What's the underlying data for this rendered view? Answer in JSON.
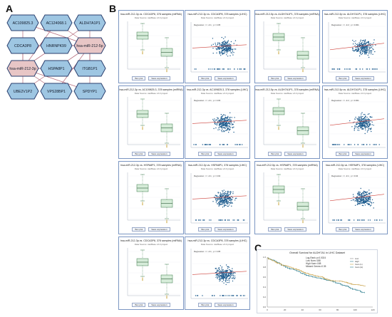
{
  "figure": {
    "labels": {
      "a": "A",
      "b": "B",
      "c": "C"
    }
  },
  "network": {
    "nodes": [
      {
        "id": "n1",
        "label": "AC109825.3",
        "mirna": false
      },
      {
        "id": "n2",
        "label": "AC124068.1",
        "mirna": false
      },
      {
        "id": "n3",
        "label": "ALDH7A1P1",
        "mirna": false
      },
      {
        "id": "n4",
        "label": "CDCA3P8",
        "mirna": false
      },
      {
        "id": "n5",
        "label": "HNRNPK99",
        "mirna": false
      },
      {
        "id": "n6",
        "label": "hsa-miR-212-5p",
        "mirna": true
      },
      {
        "id": "n7",
        "label": "hsa-miR-212-3p",
        "mirna": true
      },
      {
        "id": "n8",
        "label": "HSPA8P1",
        "mirna": false
      },
      {
        "id": "n9",
        "label": "ITGB1P1",
        "mirna": false
      },
      {
        "id": "n10",
        "label": "UBE2V1P2",
        "mirna": false
      },
      {
        "id": "n11",
        "label": "VPS28BP1",
        "mirna": false
      },
      {
        "id": "n12",
        "label": "SPDYP1",
        "mirna": false
      }
    ],
    "colors": {
      "node_fill": "#9ec6e2",
      "node_stroke": "#2a3f6e",
      "mirna_fill": "#e8c6c6",
      "edge": "#b46a7a"
    }
  },
  "panel_b": {
    "boxplot_panels": [
      {
        "title": "hsa-miR-212-3p vs. CDCA3P8, 378 samples (miRNA)",
        "subtitle": "Data Source: starBase v3.0 project"
      },
      {
        "title": "hsa-miR-212-5p vs. ALDH7A1P1, 378 samples (miRNA)",
        "subtitle": "Data Source: starBase v3.0 project"
      },
      {
        "title": "hsa-miR-212-3p vs. AC109825.3, 378 samples (miRNA)",
        "subtitle": "Data Source: starBase v3.0 project"
      },
      {
        "title": "hsa-miR-212-5p vs. ALDH7A1P1, 378 samples (miRNA)",
        "subtitle": "Data Source: starBase v3.0 project"
      },
      {
        "title": "hsa-miR-212-3p vs. HSPA8P1, 378 samples (miRNA)",
        "subtitle": "Data Source: starBase v3.0 project"
      },
      {
        "title": "hsa-miR-212-5p vs. HSPA8P1, 378 samples (miRNA)",
        "subtitle": "Data Source: starBase v3.0 project"
      },
      {
        "title": "hsa-miR-212-3p vs. CDCA3P8, 378 samples (miRNA)",
        "subtitle": "Data Source: starBase v3.0 project"
      }
    ],
    "scatter_panels": [
      {
        "title": "hsa-miR-212-3p vs. CDCA3P8, 378 samples (LIHC)",
        "subtitle": "Data Source: starBase v3.0 project",
        "legend": "Regression: r = -0.1 ; p = 0.05"
      },
      {
        "title": "hsa-miR-212-5p vs. ALDH7A1P1, 378 samples (LIHC)",
        "subtitle": "Data Source: starBase v3.0 project",
        "legend": "Regression: r = -0.2 ; p = 0.001"
      },
      {
        "title": "hsa-miR-212-3p vs. AC109825.3, 378 samples (LIHC)",
        "subtitle": "Data Source: starBase v3.0 project",
        "legend": "Regression: r = -0.1 ; p = 0.03"
      },
      {
        "title": "hsa-miR-212-5p vs. ALDH7A1P1, 378 samples (LIHC)",
        "subtitle": "Data Source: starBase v3.0 project",
        "legend": "Regression: r = -0.2 ; p = 0.001"
      },
      {
        "title": "hsa-miR-212-3p vs. HSPA8P1, 378 samples (LIHC)",
        "subtitle": "Data Source: starBase v3.0 project",
        "legend": "Regression: r = -0.1 ; p = 0.02"
      },
      {
        "title": "hsa-miR-212-5p vs. HSPA8P1, 378 samples (LIHC)",
        "subtitle": "Data Source: starBase v3.0 project",
        "legend": "Regression: r = -0.1 ; p = 0.04"
      },
      {
        "title": "hsa-miR-212-3p vs. CDCA3P8, 378 samples (LIHC)",
        "subtitle": "Data Source: starBase v3.0 project",
        "legend": "Regression: r = -0.1 ; p = 0.05"
      }
    ],
    "legend_buttons": [
      "Box plot",
      "Save expression"
    ]
  },
  "panel_c": {
    "title": "Overall Survival for ALDH7A1 in LIHC Dataset",
    "stats": [
      "Log-Rank p=0.0024",
      "Low Num=188",
      "High Num=188",
      "Missed Genes=0.35"
    ],
    "legend": [
      "Low",
      "High",
      "Cens (L)",
      "Cens (H)"
    ],
    "xticks": [
      "0",
      "20",
      "40",
      "60",
      "80",
      "100",
      "120"
    ],
    "yticks": [
      "1.0",
      "0.8",
      "0.6",
      "0.4",
      "0.2",
      "0.0"
    ],
    "colors": {
      "low": "#2f7f8f",
      "high": "#c9a24a"
    }
  }
}
